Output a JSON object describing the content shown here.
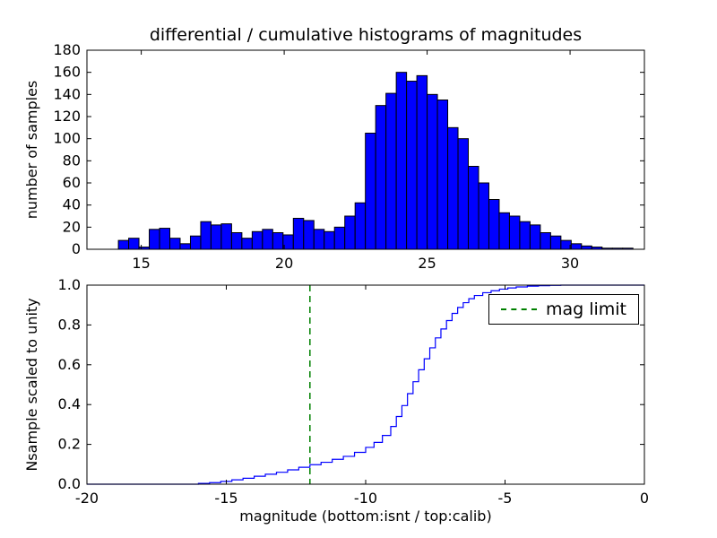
{
  "figure": {
    "title": "differential / cumulative histograms of magnitudes",
    "xlabel": "magnitude (bottom:isnt / top:calib)",
    "background": "#ffffff",
    "frame_color": "#000000",
    "text_color": "#000000"
  },
  "chart_data": [
    {
      "type": "bar",
      "subplot": "top",
      "title": "differential / cumulative histograms of magnitudes",
      "ylabel": "number of samples",
      "xlim": [
        13.1,
        32.6
      ],
      "ylim": [
        0,
        180
      ],
      "xticks": [
        15,
        20,
        25,
        30
      ],
      "xtick_labels": [
        "15",
        "20",
        "25",
        "30"
      ],
      "yticks": [
        0,
        20,
        40,
        60,
        80,
        100,
        120,
        140,
        160,
        180
      ],
      "ytick_labels": [
        "0",
        "20",
        "40",
        "60",
        "80",
        "100",
        "120",
        "140",
        "160",
        "180"
      ],
      "grid": false,
      "bar_color": "#0000ff",
      "bar_edge_color": "#000000",
      "bin_start": 14.2,
      "bin_width": 0.36,
      "counts": [
        8,
        10,
        2,
        18,
        19,
        10,
        5,
        12,
        25,
        22,
        23,
        15,
        10,
        16,
        18,
        15,
        13,
        28,
        26,
        18,
        16,
        20,
        30,
        42,
        105,
        130,
        141,
        160,
        152,
        157,
        140,
        135,
        110,
        100,
        75,
        60,
        45,
        33,
        30,
        25,
        22,
        15,
        12,
        8,
        5,
        3,
        2,
        1,
        1,
        1
      ]
    },
    {
      "type": "line",
      "subplot": "bottom",
      "ylabel": "Nsample scaled to unity",
      "xlabel": "magnitude (bottom:isnt / top:calib)",
      "xlim": [
        -20,
        0
      ],
      "ylim": [
        0.0,
        1.0
      ],
      "xticks": [
        -20,
        -15,
        -10,
        -5,
        0
      ],
      "xtick_labels": [
        "-20",
        "-15",
        "-10",
        "-5",
        "0"
      ],
      "yticks": [
        0.0,
        0.2,
        0.4,
        0.6,
        0.8,
        1.0
      ],
      "ytick_labels": [
        "0.0",
        "0.2",
        "0.4",
        "0.6",
        "0.8",
        "1.0"
      ],
      "grid": false,
      "line_color": "#0000ff",
      "line_style": "step",
      "x": [
        -20,
        -16.0,
        -15.6,
        -15.2,
        -14.8,
        -14.4,
        -14.0,
        -13.6,
        -13.2,
        -12.8,
        -12.4,
        -12.0,
        -11.6,
        -11.2,
        -10.8,
        -10.4,
        -10.0,
        -9.7,
        -9.4,
        -9.1,
        -8.9,
        -8.7,
        -8.5,
        -8.3,
        -8.1,
        -7.9,
        -7.7,
        -7.5,
        -7.3,
        -7.1,
        -6.9,
        -6.7,
        -6.5,
        -6.3,
        -6.1,
        -5.8,
        -5.5,
        -5.2,
        -4.9,
        -4.6,
        -4.2,
        -3.8,
        -3.4,
        -3.0,
        0
      ],
      "y": [
        0,
        0.004,
        0.008,
        0.014,
        0.022,
        0.03,
        0.04,
        0.05,
        0.06,
        0.072,
        0.085,
        0.098,
        0.11,
        0.125,
        0.14,
        0.16,
        0.185,
        0.21,
        0.245,
        0.29,
        0.34,
        0.395,
        0.455,
        0.515,
        0.575,
        0.63,
        0.685,
        0.735,
        0.78,
        0.822,
        0.858,
        0.888,
        0.912,
        0.932,
        0.948,
        0.962,
        0.972,
        0.98,
        0.986,
        0.991,
        0.995,
        0.997,
        0.999,
        1.0,
        1.0
      ],
      "vline": {
        "x": -12,
        "color": "#008000",
        "style": "dashed",
        "label": "mag limit"
      },
      "legend": {
        "labels": [
          "mag limit"
        ],
        "position": "upper right"
      }
    }
  ]
}
